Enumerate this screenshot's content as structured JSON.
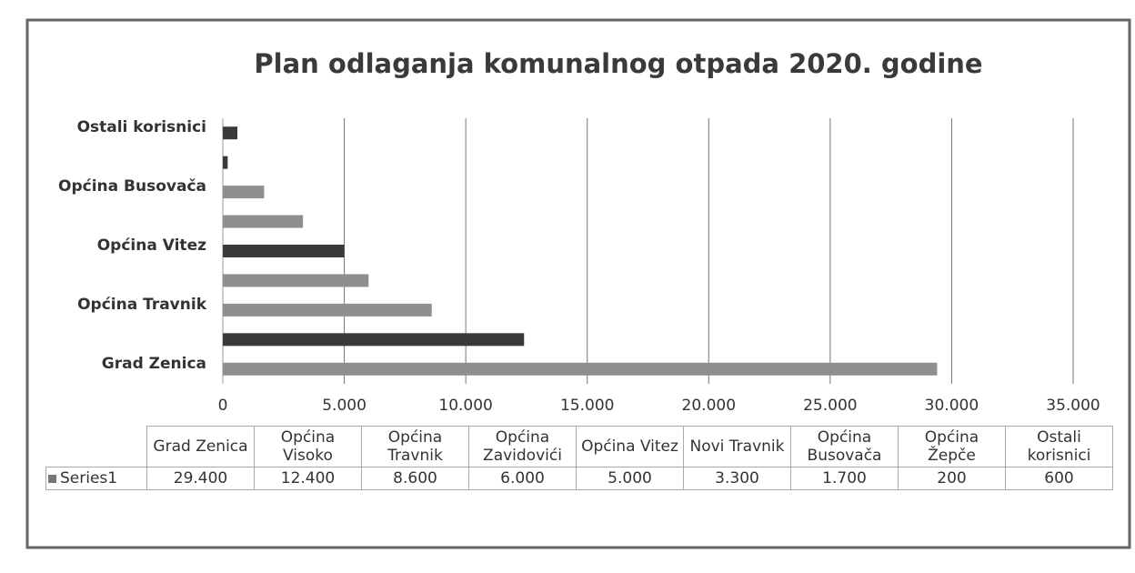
{
  "chart_data": {
    "type": "bar",
    "orientation": "horizontal",
    "title": "Plan odlaganja komunalnog otpada 2020. godine",
    "categories": [
      "Grad Zenica",
      "Općina Visoko",
      "Općina Travnik",
      "Općina Zavidovići",
      "Općina Vitez",
      "Novi Travnik",
      "Općina Busovača",
      "Općina Žepče",
      "Ostali korisnici"
    ],
    "series": [
      {
        "name": "Series1",
        "color": "#8f8f8f",
        "values": [
          29400,
          12400,
          8600,
          6000,
          5000,
          3300,
          1700,
          200,
          600
        ],
        "value_labels": [
          "29.400",
          "12.400",
          "8.600",
          "6.000",
          "5.000",
          "3.300",
          "1.700",
          "200",
          "600"
        ]
      }
    ],
    "xlim": [
      0,
      35000
    ],
    "xticks": [
      0,
      {
        "value": 5000,
        "label": "5.000"
      },
      {
        "value": 10000,
        "label": "10.000"
      },
      {
        "value": 15000,
        "label": "15.000"
      },
      {
        "value": 20000,
        "label": "20.000"
      },
      {
        "value": 25000,
        "label": "25.000"
      },
      {
        "value": 30000,
        "label": "30.000"
      },
      {
        "value": 35000,
        "label": "35.000"
      }
    ],
    "grid": true,
    "data_table": true
  }
}
